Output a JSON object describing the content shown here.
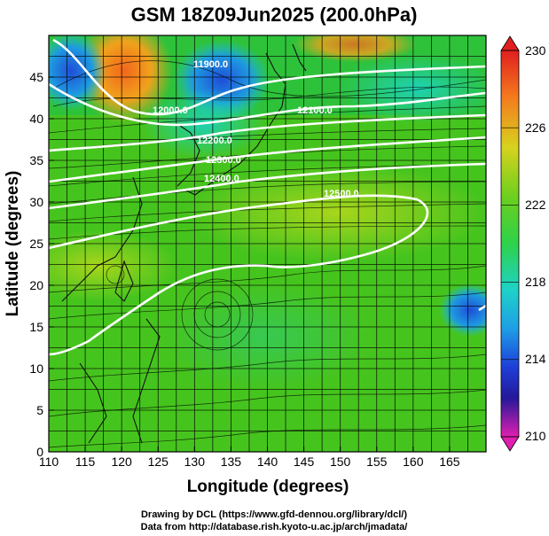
{
  "title": "GSM 18Z09Jun2025 (200.0hPa)",
  "xlabel": "Longitude (degrees)",
  "ylabel": "Latitude  (degrees)",
  "x_ticks": [
    "110",
    "115",
    "120",
    "125",
    "130",
    "135",
    "140",
    "145",
    "150",
    "155",
    "160",
    "165"
  ],
  "y_ticks": [
    "0",
    "5",
    "10",
    "15",
    "20",
    "25",
    "30",
    "35",
    "40",
    "45"
  ],
  "colorbar": {
    "labels": [
      "230",
      "226",
      "222",
      "218",
      "214",
      "210"
    ],
    "colors": [
      "#d81e1e",
      "#f06a1e",
      "#f7b01e",
      "#e6d21e",
      "#a7d61c",
      "#52c61c",
      "#1ecf86",
      "#1ec6d6",
      "#1e8fe0",
      "#1e4ad8",
      "#1e1e9e",
      "#8a1eb0",
      "#d61ea8"
    ]
  },
  "contour_labels": [
    "11900.0",
    "12000.0",
    "12100.0",
    "12200.0",
    "12300.0",
    "12400.0",
    "12500.0"
  ],
  "credits": {
    "line1": "Drawing by DCL (https://www.gfd-dennou.org/library/dcl/)",
    "line2": "Data from http://database.rish.kyoto-u.ac.jp/arch/jmadata/"
  },
  "chart_data": {
    "type": "heatmap",
    "title": "GSM 18Z09Jun2025 (200.0hPa)",
    "xlabel": "Longitude (degrees)",
    "ylabel": "Latitude  (degrees)",
    "xlim": [
      110,
      170
    ],
    "ylim": [
      0,
      50
    ],
    "colorbar_range": [
      210,
      230
    ],
    "colorbar_ticks": [
      210,
      214,
      218,
      222,
      226,
      230
    ],
    "contours": [
      {
        "label": "11900.0",
        "lon": 131,
        "lat": 45.8
      },
      {
        "label": "12000.0",
        "lon": 121,
        "lat": 41.5
      },
      {
        "label": "12100.0",
        "lon": 151,
        "lat": 42.0
      },
      {
        "label": "12200.0",
        "lon": 131,
        "lat": 37.5
      },
      {
        "label": "12300.0",
        "lon": 133,
        "lat": 35.6
      },
      {
        "label": "12400.0",
        "lon": 134,
        "lat": 33.6
      },
      {
        "label": "12500.0",
        "lon": 150,
        "lat": 29.0
      }
    ],
    "grid": true
  }
}
